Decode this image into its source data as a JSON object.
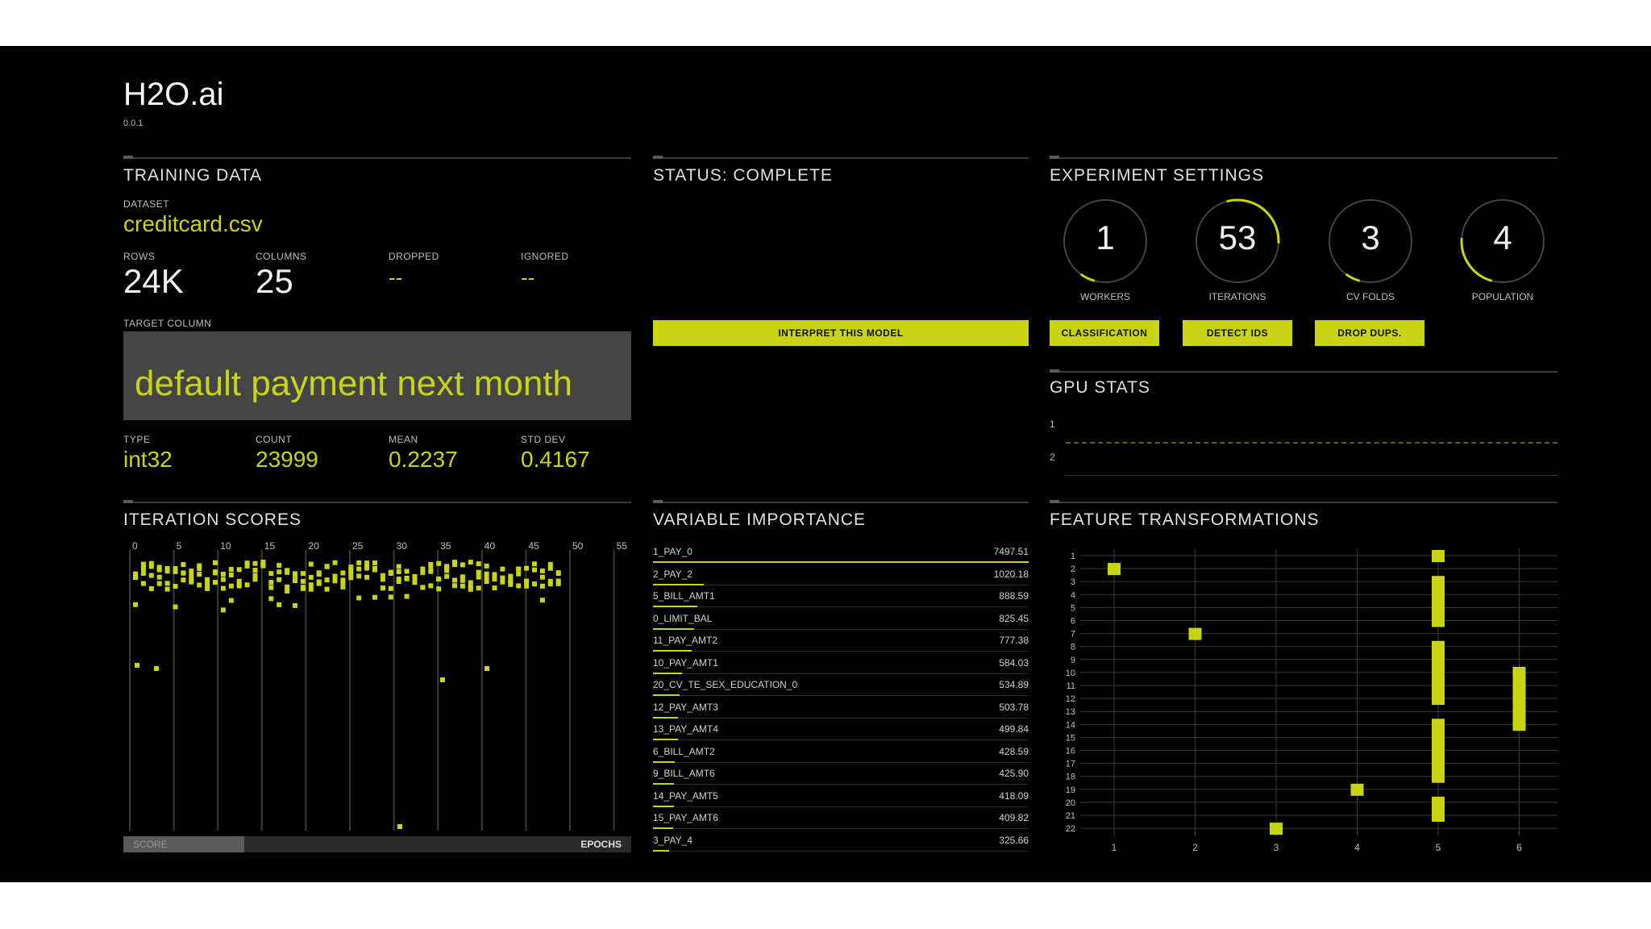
{
  "app": {
    "title": "H2O.ai",
    "version": "0.0.1"
  },
  "training_data": {
    "title": "TRAINING DATA",
    "dataset_label": "DATASET",
    "dataset": "creditcard.csv",
    "stats": [
      {
        "label": "ROWS",
        "value": "24K"
      },
      {
        "label": "COLUMNS",
        "value": "25"
      },
      {
        "label": "DROPPED",
        "value": "--"
      },
      {
        "label": "IGNORED",
        "value": "--"
      }
    ],
    "target_label": "TARGET COLUMN",
    "target": "default payment next month",
    "target_stats": [
      {
        "label": "TYPE",
        "value": "int32"
      },
      {
        "label": "COUNT",
        "value": "23999"
      },
      {
        "label": "MEAN",
        "value": "0.2237"
      },
      {
        "label": "STD DEV",
        "value": "0.4167"
      }
    ]
  },
  "status": {
    "title": "STATUS: COMPLETE",
    "button": "INTERPRET THIS MODEL"
  },
  "experiment": {
    "title": "EXPERIMENT SETTINGS",
    "dials": [
      {
        "value": "1",
        "label": "WORKERS",
        "fraction": 0.06
      },
      {
        "value": "53",
        "label": "ITERATIONS",
        "fraction": 0.3
      },
      {
        "value": "3",
        "label": "CV FOLDS",
        "fraction": 0.06
      },
      {
        "value": "4",
        "label": "POPULATION",
        "fraction": 0.22
      }
    ],
    "buttons": [
      "CLASSIFICATION",
      "DETECT IDS",
      "DROP DUPS."
    ]
  },
  "gpu": {
    "title": "GPU STATS",
    "rows": [
      "1",
      "2"
    ]
  },
  "iteration_scores": {
    "title": "ITERATION SCORES",
    "ticks": [
      "0",
      "5",
      "10",
      "15",
      "20",
      "25",
      "30",
      "35",
      "40",
      "45",
      "50",
      "55"
    ],
    "score_label": "SCORE",
    "epochs_label": "EPOCHS"
  },
  "variable_importance": {
    "title": "VARIABLE IMPORTANCE",
    "items": [
      {
        "name": "1_PAY_0",
        "value": "7497.51",
        "v": 7497.51
      },
      {
        "name": "2_PAY_2",
        "value": "1020.18",
        "v": 1020.18
      },
      {
        "name": "5_BILL_AMT1",
        "value": "888.59",
        "v": 888.59
      },
      {
        "name": "0_LIMIT_BAL",
        "value": "825.45",
        "v": 825.45
      },
      {
        "name": "11_PAY_AMT2",
        "value": "777.38",
        "v": 777.38
      },
      {
        "name": "10_PAY_AMT1",
        "value": "584.03",
        "v": 584.03
      },
      {
        "name": "20_CV_TE_SEX_EDUCATION_0",
        "value": "534.89",
        "v": 534.89
      },
      {
        "name": "12_PAY_AMT3",
        "value": "503.78",
        "v": 503.78
      },
      {
        "name": "13_PAY_AMT4",
        "value": "499.84",
        "v": 499.84
      },
      {
        "name": "6_BILL_AMT2",
        "value": "428.59",
        "v": 428.59
      },
      {
        "name": "9_BILL_AMT6",
        "value": "425.90",
        "v": 425.9
      },
      {
        "name": "14_PAY_AMT5",
        "value": "418.09",
        "v": 418.09
      },
      {
        "name": "15_PAY_AMT6",
        "value": "409.82",
        "v": 409.82
      },
      {
        "name": "3_PAY_4",
        "value": "325.66",
        "v": 325.66
      }
    ]
  },
  "feature_transformations": {
    "title": "FEATURE TRANSFORMATIONS",
    "y_ticks": [
      "1",
      "2",
      "3",
      "4",
      "5",
      "6",
      "7",
      "8",
      "9",
      "10",
      "11",
      "12",
      "13",
      "14",
      "15",
      "16",
      "17",
      "18",
      "19",
      "20",
      "21",
      "22"
    ],
    "x_ticks": [
      "1",
      "2",
      "3",
      "4",
      "5",
      "6"
    ],
    "cells": [
      {
        "x": 1,
        "y0": 2,
        "y1": 2
      },
      {
        "x": 2,
        "y0": 7,
        "y1": 7
      },
      {
        "x": 3,
        "y0": 22,
        "y1": 22
      },
      {
        "x": 4,
        "y0": 19,
        "y1": 19
      },
      {
        "x": 5,
        "y0": 1,
        "y1": 1
      },
      {
        "x": 5,
        "y0": 3,
        "y1": 6
      },
      {
        "x": 5,
        "y0": 8,
        "y1": 12
      },
      {
        "x": 5,
        "y0": 14,
        "y1": 18
      },
      {
        "x": 5,
        "y0": 20,
        "y1": 21
      },
      {
        "x": 6,
        "y0": 10,
        "y1": 14
      }
    ]
  },
  "colors": {
    "accent": "#c8d414",
    "background": "#000000"
  }
}
